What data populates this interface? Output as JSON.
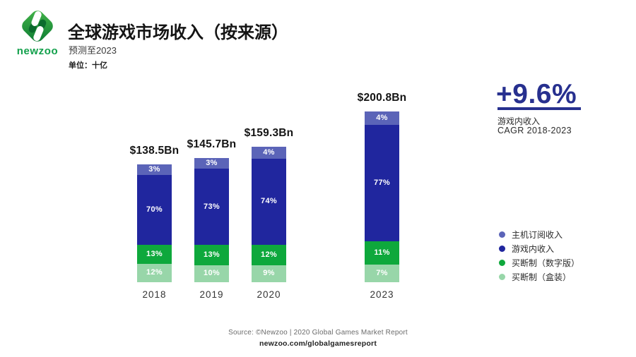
{
  "header": {
    "logo_text": "newzoo",
    "title": "全球游戏市场收入（按来源）",
    "subtitle": "预测至2023",
    "unit_label": "单位：十亿"
  },
  "chart_data": {
    "type": "bar",
    "stacked": true,
    "title": "全球游戏市场收入（按来源）",
    "unit": "十亿",
    "grid": false,
    "legend_position": "right",
    "categories": [
      "2018",
      "2019",
      "2020",
      "2023"
    ],
    "totals": [
      138.5,
      145.7,
      159.3,
      200.8
    ],
    "total_labels": [
      "$138.5Bn",
      "$145.7Bn",
      "$159.3Bn",
      "$200.8Bn"
    ],
    "series": [
      {
        "key": "console-subscription",
        "name": "主机订阅收入",
        "color": "#5B64B8",
        "percent": [
          3,
          3,
          4,
          4
        ]
      },
      {
        "key": "in-game",
        "name": "游戏内收入",
        "color": "#20269E",
        "percent": [
          70,
          73,
          74,
          77
        ]
      },
      {
        "key": "buy-to-play-digital",
        "name": "买断制（数字版）",
        "color": "#0EA83C",
        "percent": [
          13,
          13,
          12,
          11
        ]
      },
      {
        "key": "buy-to-play-boxed",
        "name": "买断制（盒装）",
        "color": "#98D6A9",
        "percent": [
          12,
          10,
          9,
          7
        ]
      }
    ]
  },
  "cagr": {
    "value": "+9.6%",
    "metric": "游戏内收入",
    "period": "CAGR 2018-2023",
    "color": "#27308F"
  },
  "legend": {
    "items": [
      {
        "key": "console-subscription",
        "label": "主机订阅收入",
        "color": "#5B64B8"
      },
      {
        "key": "in-game",
        "label": "游戏内收入",
        "color": "#20269E"
      },
      {
        "key": "buy-to-play-digital",
        "label": "买断制（数字版）",
        "color": "#0EA83C"
      },
      {
        "key": "buy-to-play-boxed",
        "label": "买断制（盒装）",
        "color": "#98D6A9"
      }
    ]
  },
  "footer": {
    "source": "Source: ©Newzoo | 2020 Global Games Market Report",
    "link": "newzoo.com/globalgamesreport"
  }
}
